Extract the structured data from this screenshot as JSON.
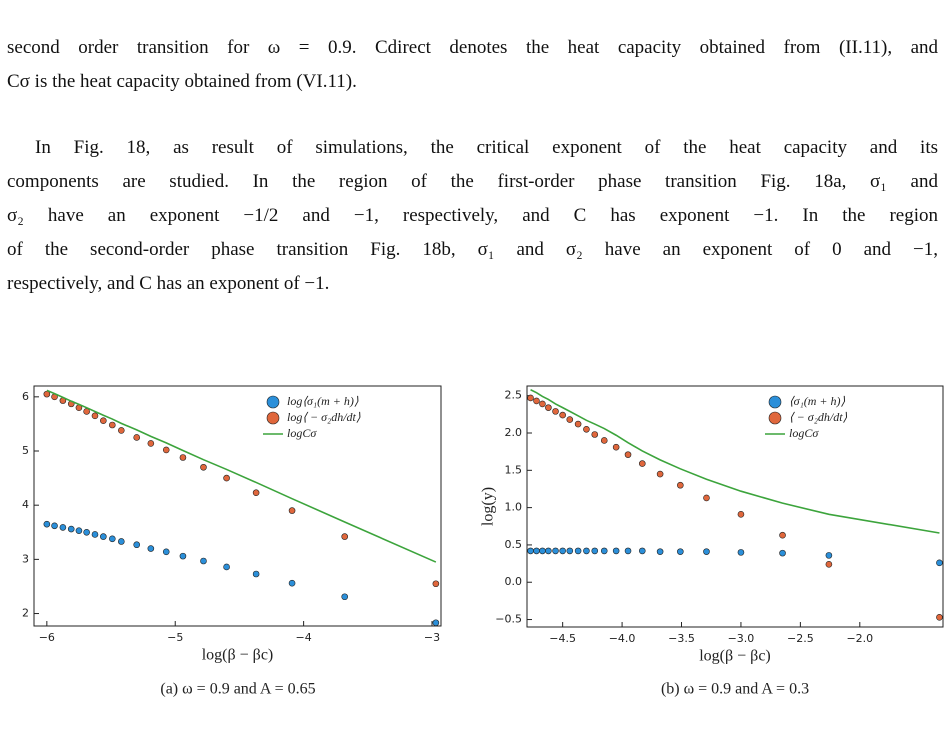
{
  "caption_lines": [
    "second order transition for ω = 0.9. Cdirect denotes the heat capacity obtained from (II.11), and",
    "Cσ is the heat capacity obtained from (VI.11)."
  ],
  "paragraph_lines": [
    "In Fig. 18, as result of simulations, the critical exponent of the heat capacity and its",
    "components are studied. In the region of the first-order phase transition Fig. 18a, σ₁ and",
    "σ₂ have an exponent −1/2 and −1, respectively, and C has exponent −1. In the region",
    "of the second-order phase transition Fig. 18b, σ₁ and σ₂ have an exponent of 0 and −1,",
    "respectively, and C has an exponent of −1."
  ],
  "subcaptions": [
    "(a) ω = 0.9 and A = 0.65",
    "(b) ω = 0.9 and A = 0.3"
  ],
  "chart_data": [
    {
      "type": "scatter",
      "xlabel": "log(β − βc)",
      "legend": "upper right",
      "grid": false,
      "xlim": [
        -6.1,
        -2.93
      ],
      "ylim": [
        1.77,
        6.2
      ],
      "xticks": [
        {
          "value": -6,
          "label": "−6"
        },
        {
          "value": -5,
          "label": "−5"
        },
        {
          "value": -4,
          "label": "−4"
        },
        {
          "value": -3,
          "label": "−3"
        }
      ],
      "yticks": [
        2,
        3,
        4,
        5,
        6
      ],
      "x": [
        -6,
        -5.94,
        -5.875,
        -5.81,
        -5.75,
        -5.69,
        -5.625,
        -5.56,
        -5.49,
        -5.42,
        -5.3,
        -5.19,
        -5.07,
        -4.94,
        -4.78,
        -4.6,
        -4.37,
        -4.09,
        -3.68,
        -2.97
      ],
      "series": [
        {
          "name": "log⟨σ₁(m + h)⟩",
          "color": "#2b8fd9",
          "kind": "scatter",
          "values": [
            3.65,
            3.62,
            3.59,
            3.56,
            3.53,
            3.5,
            3.46,
            3.42,
            3.38,
            3.33,
            3.27,
            3.2,
            3.14,
            3.06,
            2.97,
            2.86,
            2.73,
            2.56,
            2.31,
            1.83
          ]
        },
        {
          "name": "log⟨ − σ₂dh/dt⟩",
          "color": "#e0673c",
          "kind": "scatter",
          "values": [
            6.05,
            6.0,
            5.93,
            5.87,
            5.8,
            5.73,
            5.65,
            5.56,
            5.48,
            5.38,
            5.25,
            5.14,
            5.02,
            4.88,
            4.7,
            4.5,
            4.23,
            3.9,
            3.42,
            2.55
          ]
        },
        {
          "name": "logCσ",
          "color": "#3ca43c",
          "kind": "line",
          "values": [
            6.12,
            6.06,
            5.99,
            5.92,
            5.86,
            5.8,
            5.73,
            5.66,
            5.59,
            5.51,
            5.39,
            5.27,
            5.15,
            5.01,
            4.84,
            4.66,
            4.42,
            4.12,
            3.69,
            2.95
          ]
        }
      ]
    },
    {
      "type": "scatter",
      "xlabel": "log(β − βc)",
      "ylabel": "log(y)",
      "legend": "upper right",
      "grid": false,
      "xlim": [
        -4.8,
        -1.3
      ],
      "ylim": [
        -0.6,
        2.63
      ],
      "xticks": [
        {
          "value": -4.5,
          "label": "−4.5"
        },
        {
          "value": -4,
          "label": "−4.0"
        },
        {
          "value": -3.5,
          "label": "−3.5"
        },
        {
          "value": -3,
          "label": "−3.0"
        },
        {
          "value": -2.5,
          "label": "−2.5"
        },
        {
          "value": -2,
          "label": "−2.0"
        }
      ],
      "yticks": [
        {
          "value": -0.5,
          "label": "−0.5"
        },
        {
          "value": 0,
          "label": "0.0"
        },
        0.5,
        {
          "value": 1,
          "label": "1.0"
        },
        1.5,
        {
          "value": 2,
          "label": "2.0"
        },
        2.5
      ],
      "x": [
        -4.77,
        -4.72,
        -4.67,
        -4.62,
        -4.56,
        -4.5,
        -4.44,
        -4.37,
        -4.3,
        -4.23,
        -4.15,
        -4.05,
        -3.95,
        -3.83,
        -3.68,
        -3.51,
        -3.29,
        -3.0,
        -2.65,
        -2.26,
        -1.33
      ],
      "series": [
        {
          "name": "⟨σ₁(m + h)⟩",
          "color": "#2b8fd9",
          "kind": "scatter",
          "values": [
            0.42,
            0.42,
            0.42,
            0.42,
            0.42,
            0.42,
            0.42,
            0.42,
            0.42,
            0.42,
            0.42,
            0.42,
            0.42,
            0.42,
            0.41,
            0.41,
            0.41,
            0.4,
            0.39,
            0.36,
            0.26
          ]
        },
        {
          "name": "⟨ − σ₂dh/dt⟩",
          "color": "#e0673c",
          "kind": "scatter",
          "values": [
            2.47,
            2.43,
            2.39,
            2.34,
            2.29,
            2.24,
            2.18,
            2.12,
            2.05,
            1.98,
            1.9,
            1.81,
            1.71,
            1.59,
            1.45,
            1.3,
            1.13,
            0.91,
            0.63,
            0.24,
            -0.47
          ]
        },
        {
          "name": "logCσ",
          "color": "#3ca43c",
          "kind": "line",
          "values": [
            2.58,
            2.54,
            2.49,
            2.45,
            2.39,
            2.34,
            2.29,
            2.23,
            2.17,
            2.12,
            2.06,
            1.97,
            1.87,
            1.76,
            1.64,
            1.52,
            1.38,
            1.22,
            1.06,
            0.91,
            0.66
          ]
        }
      ]
    }
  ]
}
